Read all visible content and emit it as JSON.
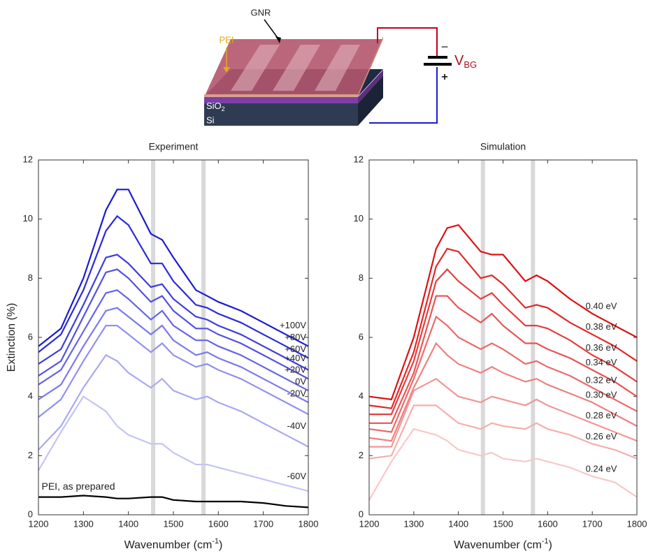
{
  "diagram": {
    "gnr": "GNR",
    "pei": "PEI",
    "sio2": "SiO",
    "sio2_sub": "2",
    "si": "Si",
    "v": "V",
    "v_sub": "BG",
    "minus": "−",
    "plus": "+"
  },
  "chart_data": [
    {
      "type": "line",
      "title": "Experiment",
      "ylabel": "Extinction (%)",
      "xlabel": [
        "Wavenumber (cm",
        "-1",
        ")"
      ],
      "xlim": [
        1200,
        1800
      ],
      "ylim": [
        0,
        12
      ],
      "xticks": [
        1200,
        1300,
        1400,
        1500,
        1600,
        1700,
        1800
      ],
      "yticks": [
        0,
        2,
        4,
        6,
        8,
        10,
        12
      ],
      "vlines": [
        1455,
        1567
      ],
      "vline_color": "#d9d9d9",
      "x": [
        1200,
        1250,
        1300,
        1350,
        1375,
        1400,
        1450,
        1475,
        1500,
        1550,
        1575,
        1600,
        1650,
        1700,
        1750,
        1800
      ],
      "series": [
        {
          "name": "+100V",
          "color": "#1a1ad6",
          "values": [
            5.7,
            6.3,
            8.0,
            10.3,
            11.0,
            11.0,
            9.5,
            9.3,
            8.7,
            7.6,
            7.4,
            7.2,
            6.9,
            6.5,
            6.1,
            5.7
          ]
        },
        {
          "name": "+80V",
          "color": "#2a2adb",
          "values": [
            5.5,
            6.1,
            7.6,
            9.6,
            10.1,
            9.8,
            8.5,
            8.5,
            7.9,
            7.1,
            7.0,
            6.8,
            6.5,
            6.1,
            5.7,
            5.3
          ]
        },
        {
          "name": "+60V",
          "color": "#3d3de0",
          "values": [
            5.1,
            5.6,
            7.1,
            8.7,
            8.8,
            8.5,
            7.7,
            7.8,
            7.3,
            6.7,
            6.6,
            6.4,
            6.1,
            5.7,
            5.3,
            4.9
          ]
        },
        {
          "name": "+40V",
          "color": "#5050e4",
          "values": [
            4.7,
            5.2,
            6.7,
            8.2,
            8.3,
            8.0,
            7.2,
            7.4,
            6.9,
            6.3,
            6.3,
            6.1,
            5.8,
            5.4,
            5.0,
            4.6
          ]
        },
        {
          "name": "+20V",
          "color": "#6464e8",
          "values": [
            4.4,
            4.9,
            6.2,
            7.5,
            7.6,
            7.3,
            6.6,
            6.9,
            6.4,
            5.9,
            5.9,
            5.7,
            5.4,
            5.0,
            4.6,
            4.2
          ]
        },
        {
          "name": "0V",
          "color": "#7a7aec",
          "values": [
            3.9,
            4.4,
            5.7,
            6.9,
            7.0,
            6.7,
            6.1,
            6.4,
            5.9,
            5.4,
            5.5,
            5.3,
            5.0,
            4.6,
            4.2,
            3.8
          ]
        },
        {
          "name": "-20V",
          "color": "#9090f0",
          "values": [
            3.3,
            3.9,
            5.2,
            6.4,
            6.4,
            6.1,
            5.5,
            5.8,
            5.4,
            5.0,
            5.1,
            4.9,
            4.6,
            4.2,
            3.8,
            3.4
          ]
        },
        {
          "name": "-40V",
          "color": "#a8a8f3",
          "values": [
            2.2,
            3.0,
            4.3,
            5.4,
            5.2,
            4.8,
            4.3,
            4.6,
            4.2,
            3.9,
            4.0,
            3.8,
            3.5,
            3.1,
            2.7,
            2.3
          ]
        },
        {
          "name": "-60V",
          "color": "#c4c4f7",
          "values": [
            1.5,
            2.8,
            4.0,
            3.5,
            3.0,
            2.7,
            2.4,
            2.4,
            2.1,
            1.7,
            1.7,
            1.6,
            1.4,
            1.2,
            1.0,
            0.8
          ]
        },
        {
          "name": "PEI, as prepared",
          "color": "#000000",
          "values": [
            0.6,
            0.6,
            0.65,
            0.6,
            0.55,
            0.55,
            0.6,
            0.6,
            0.5,
            0.45,
            0.45,
            0.45,
            0.45,
            0.4,
            0.3,
            0.25
          ]
        }
      ]
    },
    {
      "type": "line",
      "title": "Simulation",
      "xlabel": [
        "Wavenumber (cm",
        "-1",
        ")"
      ],
      "xlim": [
        1200,
        1800
      ],
      "ylim": [
        0,
        12
      ],
      "xticks": [
        1200,
        1300,
        1400,
        1500,
        1600,
        1700,
        1800
      ],
      "yticks": [
        0,
        2,
        4,
        6,
        8,
        10,
        12
      ],
      "vlines": [
        1455,
        1567
      ],
      "vline_color": "#d9d9d9",
      "x": [
        1200,
        1250,
        1300,
        1350,
        1375,
        1400,
        1450,
        1475,
        1500,
        1550,
        1575,
        1600,
        1650,
        1700,
        1750,
        1800
      ],
      "series": [
        {
          "name": "0.40 eV",
          "color": "#dd1111",
          "values": [
            4.0,
            3.9,
            6.0,
            9.0,
            9.7,
            9.8,
            8.9,
            8.8,
            8.8,
            7.9,
            8.1,
            7.9,
            7.3,
            6.8,
            6.4,
            6.0
          ]
        },
        {
          "name": "0.38 eV",
          "color": "#e12828",
          "values": [
            3.7,
            3.6,
            5.5,
            8.4,
            9.0,
            8.9,
            8.0,
            8.1,
            7.8,
            7.0,
            7.1,
            7.0,
            6.5,
            6.1,
            5.7,
            5.2
          ]
        },
        {
          "name": "0.36 eV",
          "color": "#e53e3e",
          "values": [
            3.4,
            3.4,
            5.2,
            7.9,
            8.3,
            7.9,
            7.3,
            7.5,
            7.1,
            6.4,
            6.4,
            6.3,
            5.9,
            5.4,
            5.0,
            4.5
          ]
        },
        {
          "name": "0.34 eV",
          "color": "#e85454",
          "values": [
            3.1,
            3.1,
            4.8,
            7.4,
            7.4,
            7.0,
            6.5,
            6.8,
            6.4,
            5.8,
            5.8,
            5.6,
            5.3,
            4.9,
            4.5,
            4.0
          ]
        },
        {
          "name": "0.32 eV",
          "color": "#ec6a6a",
          "values": [
            2.9,
            2.8,
            4.6,
            6.7,
            6.4,
            6.0,
            5.6,
            5.8,
            5.6,
            5.1,
            5.2,
            5.0,
            4.7,
            4.3,
            3.9,
            3.5
          ]
        },
        {
          "name": "0.30 eV",
          "color": "#ef8080",
          "values": [
            2.6,
            2.5,
            4.3,
            5.8,
            5.4,
            5.1,
            4.8,
            5.0,
            4.8,
            4.5,
            4.6,
            4.4,
            4.1,
            3.8,
            3.4,
            3.0
          ]
        },
        {
          "name": "0.28 eV",
          "color": "#f29696",
          "values": [
            2.3,
            2.3,
            4.2,
            4.6,
            4.3,
            4.0,
            3.8,
            4.0,
            3.9,
            3.7,
            3.9,
            3.7,
            3.4,
            3.1,
            2.8,
            2.5
          ]
        },
        {
          "name": "0.26 eV",
          "color": "#f5aeae",
          "values": [
            1.9,
            2.0,
            3.7,
            3.7,
            3.4,
            3.1,
            2.9,
            3.1,
            3.0,
            2.9,
            3.1,
            2.9,
            2.7,
            2.4,
            2.2,
            1.9
          ]
        },
        {
          "name": "0.24 eV",
          "color": "#f8c8c8",
          "values": [
            0.5,
            1.8,
            2.9,
            2.7,
            2.5,
            2.2,
            2.0,
            2.1,
            1.9,
            1.8,
            1.9,
            1.8,
            1.6,
            1.3,
            1.1,
            0.6
          ]
        }
      ]
    }
  ]
}
